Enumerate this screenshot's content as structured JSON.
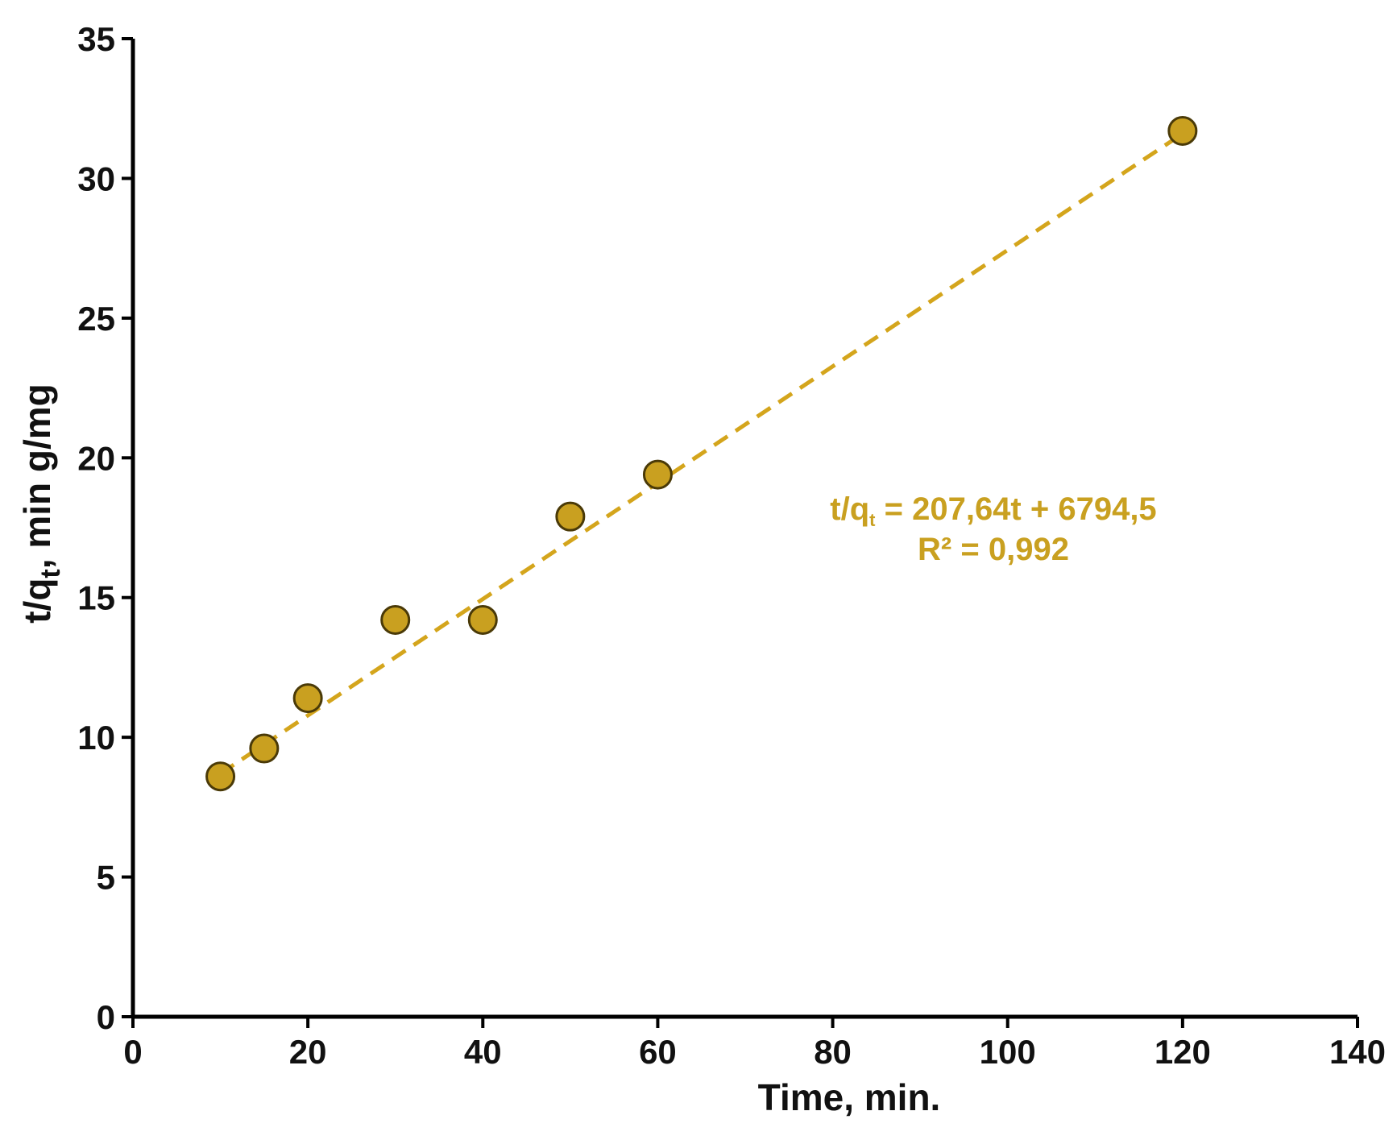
{
  "colors": {
    "marker_fill": "#C9A020",
    "marker_stroke": "#4a3a08",
    "trendline": "#D4A51C",
    "annotation": "#C9A020",
    "axis": "#000000"
  },
  "chart_data": {
    "type": "scatter",
    "title": "",
    "xlabel": "Time, min.",
    "ylabel": "t/q",
    "ylabel_subscript": "t",
    "ylabel_suffix": ", min g/mg",
    "xlim": [
      0,
      140
    ],
    "ylim": [
      0,
      35
    ],
    "x_ticks": [
      0,
      20,
      40,
      60,
      80,
      100,
      120,
      140
    ],
    "y_ticks": [
      0,
      5,
      10,
      15,
      20,
      25,
      30,
      35
    ],
    "grid": false,
    "legend": "none",
    "series": [
      {
        "marker": "circle",
        "x": [
          10,
          15,
          20,
          30,
          40,
          50,
          60,
          120
        ],
        "y": [
          8.6,
          9.6,
          11.4,
          14.2,
          14.2,
          17.9,
          19.4,
          31.7
        ]
      }
    ],
    "trendline": {
      "type": "linear",
      "style": "dashed",
      "x_range": [
        10,
        120
      ],
      "y_range": [
        8.7,
        31.6
      ]
    },
    "annotation": {
      "equation_prefix": "t/q",
      "equation_subscript": "t",
      "equation_suffix": " = 207,64t + 6794,5",
      "r_squared": "R² = 0,992"
    }
  }
}
